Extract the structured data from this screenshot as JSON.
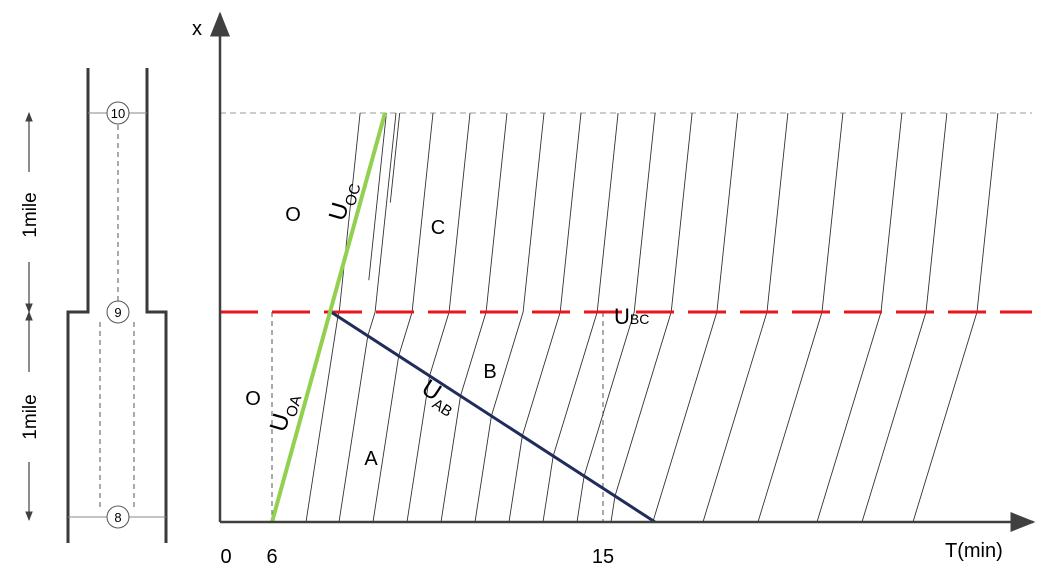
{
  "axes": {
    "y_label": "x",
    "x_label": "T(min)",
    "x_ticks": [
      "0",
      "6",
      "15"
    ]
  },
  "roadway": {
    "stations": [
      "10",
      "9",
      "8"
    ],
    "segments": [
      "1mile",
      "1mile"
    ]
  },
  "regions": {
    "o_upper": "O",
    "o_lower": "O",
    "c": "C",
    "b": "B",
    "a": "A"
  },
  "waves": {
    "oc": {
      "main": "U",
      "sub": "OC"
    },
    "oa": {
      "main": "U",
      "sub": "OA"
    },
    "ab": {
      "main": "U",
      "sub": "AB"
    },
    "bc": {
      "main": "U",
      "sub": "BC"
    }
  },
  "colors": {
    "oc_oa_wave": "#92d050",
    "ab_wave": "#1f2d5a",
    "bc_wave": "#e8161b",
    "axis": "#404040",
    "trajectory": "#333333",
    "guide": "#808080"
  }
}
